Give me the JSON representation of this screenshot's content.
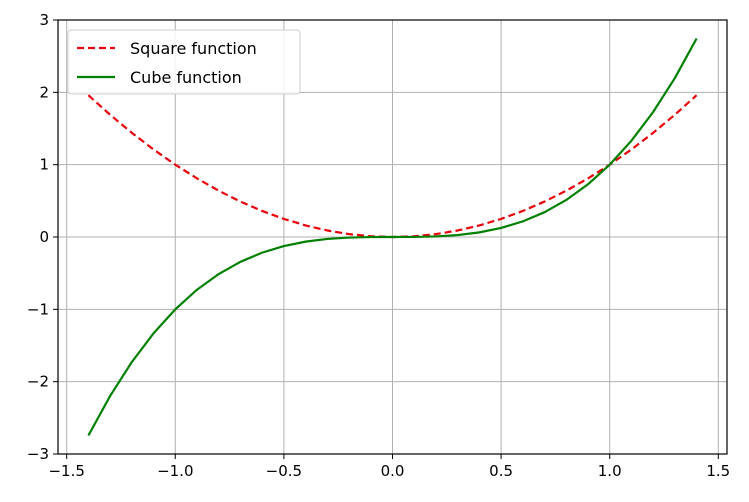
{
  "chart_data": {
    "type": "line",
    "title": "",
    "xlabel": "",
    "ylabel": "",
    "xlim": [
      -1.54,
      1.54
    ],
    "ylim": [
      -3,
      3
    ],
    "x_ticks": [
      -1.5,
      -1.0,
      -0.5,
      0.0,
      0.5,
      1.0,
      1.5
    ],
    "x_tick_labels": [
      "−1.5",
      "−1.0",
      "−0.5",
      "0.0",
      "0.5",
      "1.0",
      "1.5"
    ],
    "y_ticks": [
      -3,
      -2,
      -1,
      0,
      1,
      2,
      3
    ],
    "y_tick_labels": [
      "−3",
      "−2",
      "−1",
      "0",
      "1",
      "2",
      "3"
    ],
    "grid": true,
    "legend_position": "upper-left",
    "x": [
      -1.4,
      -1.3,
      -1.2,
      -1.1,
      -1.0,
      -0.9,
      -0.8,
      -0.7,
      -0.6,
      -0.5,
      -0.4,
      -0.3,
      -0.2,
      -0.1,
      0.0,
      0.1,
      0.2,
      0.3,
      0.4,
      0.5,
      0.6,
      0.7,
      0.8,
      0.9,
      1.0,
      1.1,
      1.2,
      1.3,
      1.4
    ],
    "series": [
      {
        "name": "Square function",
        "color": "#e8000b",
        "style": "dashed",
        "values": [
          1.96,
          1.69,
          1.44,
          1.21,
          1.0,
          0.81,
          0.64,
          0.49,
          0.36,
          0.25,
          0.16,
          0.09,
          0.04,
          0.01,
          0.0,
          0.01,
          0.04,
          0.09,
          0.16,
          0.25,
          0.36,
          0.49,
          0.64,
          0.81,
          1.0,
          1.21,
          1.44,
          1.69,
          1.96
        ]
      },
      {
        "name": "Cube function",
        "color": "#008000",
        "style": "solid",
        "values": [
          -2.744,
          -2.197,
          -1.728,
          -1.331,
          -1.0,
          -0.729,
          -0.512,
          -0.343,
          -0.216,
          -0.125,
          -0.064,
          -0.027,
          -0.008,
          -0.001,
          0.0,
          0.001,
          0.008,
          0.027,
          0.064,
          0.125,
          0.216,
          0.343,
          0.512,
          0.729,
          1.0,
          1.331,
          1.728,
          2.197,
          2.744
        ]
      }
    ]
  }
}
